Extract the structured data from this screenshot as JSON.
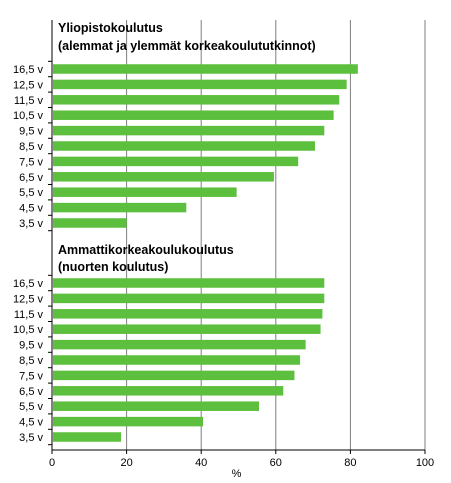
{
  "chart_data": [
    {
      "type": "bar",
      "orientation": "horizontal",
      "title": "Yliopistokoulutus (alemmat ja ylemmät korkeakoulututkinnot)",
      "title_lines": [
        "Yliopistokoulutus",
        "(alemmat ja ylemmät korkeakoulututkinnot)"
      ],
      "categories": [
        "16,5 v",
        "12,5 v",
        "11,5 v",
        "10,5 v",
        "9,5 v",
        "8,5 v",
        "7,5 v",
        "6,5 v",
        "5,5 v",
        "4,5 v",
        "3,5 v"
      ],
      "values": [
        82,
        79,
        77,
        75.5,
        73,
        70.5,
        66,
        59.5,
        49.5,
        36,
        20
      ]
    },
    {
      "type": "bar",
      "orientation": "horizontal",
      "title": "Ammattikorkeakoulukoulutus (nuorten koulutus)",
      "title_lines": [
        "Ammattikorkeakoulukoulutus",
        "(nuorten koulutus)"
      ],
      "categories": [
        "16,5 v",
        "12,5 v",
        "11,5 v",
        "10,5 v",
        "9,5 v",
        "8,5 v",
        "7,5 v",
        "6,5 v",
        "5,5 v",
        "4,5 v",
        "3,5 v"
      ],
      "values": [
        73,
        73,
        72.5,
        72,
        68,
        66.5,
        65,
        62,
        55.5,
        40.5,
        18.5
      ]
    }
  ],
  "axis": {
    "xlabel": "%",
    "xlim": [
      0,
      100
    ],
    "xticks": [
      "0",
      "20",
      "40",
      "60",
      "80",
      "100"
    ]
  },
  "colors": {
    "bar": "#5cbf3e",
    "grid": "#7f7f7f",
    "axis": "#000000"
  }
}
